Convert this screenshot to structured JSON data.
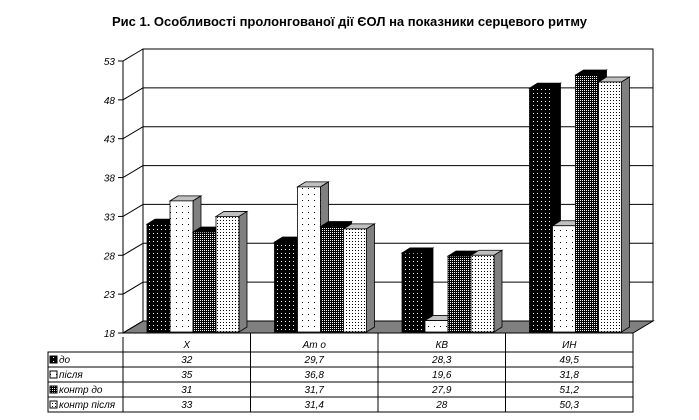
{
  "chart_data": {
    "type": "bar",
    "title": "Рис 1. Особливості пролонгованої дії ЄОЛ на показники серцевого ритму",
    "categories": [
      "Х",
      "Ат о",
      "КВ",
      "ИН"
    ],
    "series": [
      {
        "name": "до",
        "values": [
          32,
          29.7,
          28.3,
          49.5
        ],
        "labels": [
          "32",
          "29,7",
          "28,3",
          "49,5"
        ],
        "pattern": "black-white-dots"
      },
      {
        "name": "після",
        "values": [
          35,
          36.8,
          19.6,
          31.8
        ],
        "labels": [
          "35",
          "36,8",
          "19,6",
          "31,8"
        ],
        "pattern": "white-sparse-dots"
      },
      {
        "name": "контр до",
        "values": [
          31,
          31.7,
          27.9,
          51.2
        ],
        "labels": [
          "31",
          "31,7",
          "27,9",
          "51,2"
        ],
        "pattern": "dense-dark-dots"
      },
      {
        "name": "контр після",
        "values": [
          33,
          31.4,
          28,
          50.3
        ],
        "labels": [
          "33",
          "31,4",
          "28",
          "50,3"
        ],
        "pattern": "white-dense-dots"
      }
    ],
    "yticks": [
      "18",
      "23",
      "28",
      "33",
      "38",
      "43",
      "48",
      "53"
    ],
    "ylim": [
      18,
      53
    ],
    "grid": true,
    "three_d": true,
    "legend": "data-table"
  }
}
